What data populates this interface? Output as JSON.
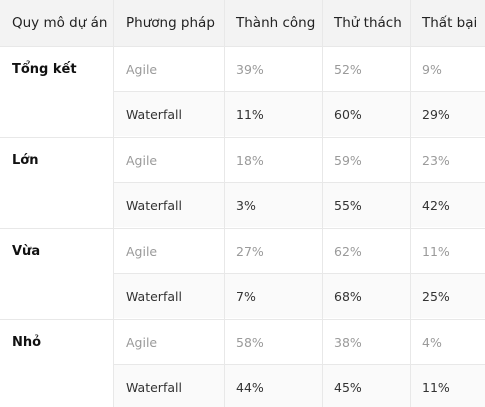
{
  "headers": [
    "Quy mô dự án",
    "Phương pháp",
    "Thành công",
    "Thử thách",
    "Thất bại"
  ],
  "groups": [
    {
      "label": "Tổng kết",
      "rows": [
        {
          "method": "Agile",
          "success": "39%",
          "challenged": "52%",
          "failed": "9%"
        },
        {
          "method": "Waterfall",
          "success": "11%",
          "challenged": "60%",
          "failed": "29%"
        }
      ]
    },
    {
      "label": "Lớn",
      "rows": [
        {
          "method": "Agile",
          "success": "18%",
          "challenged": "59%",
          "failed": "23%"
        },
        {
          "method": "Waterfall",
          "success": "3%",
          "challenged": "55%",
          "failed": "42%"
        }
      ]
    },
    {
      "label": "Vừa",
      "rows": [
        {
          "method": "Agile",
          "success": "27%",
          "challenged": "62%",
          "failed": "11%"
        },
        {
          "method": "Waterfall",
          "success": "7%",
          "challenged": "68%",
          "failed": "25%"
        }
      ]
    },
    {
      "label": "Nhỏ",
      "rows": [
        {
          "method": "Agile",
          "success": "58%",
          "challenged": "38%",
          "failed": "4%"
        },
        {
          "method": "Waterfall",
          "success": "44%",
          "challenged": "45%",
          "failed": "11%"
        }
      ]
    }
  ]
}
